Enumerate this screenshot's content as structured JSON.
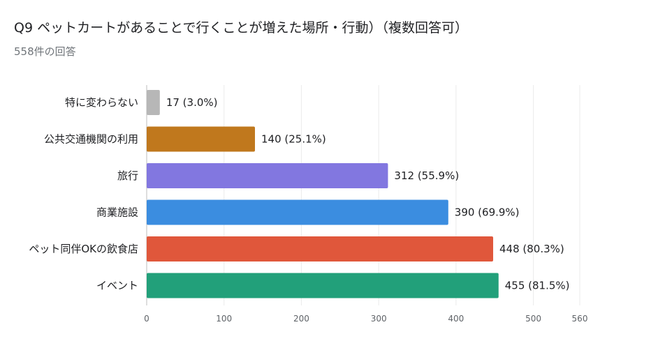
{
  "header": {
    "title": "Q9 ペットカートがあることで行くことが増えた場所・行動）（複数回答可）",
    "responses": "558件の回答"
  },
  "chart_data": {
    "type": "bar",
    "orientation": "horizontal",
    "categories": [
      "特に変わらない",
      "公共交通機関の利用",
      "旅行",
      "商業施設",
      "ペット同伴OKの飲食店",
      "イベント"
    ],
    "values": [
      17,
      140,
      312,
      390,
      448,
      455
    ],
    "data_labels": [
      "17 (3.0%)",
      "140 (25.1%)",
      "312 (55.9%)",
      "390 (69.9%)",
      "448 (80.3%)",
      "455 (81.5%)"
    ],
    "colors": [
      "#b7b7b7",
      "#c0781d",
      "#8277e0",
      "#3b8de0",
      "#e0573b",
      "#22a07a"
    ],
    "xticks": [
      0,
      100,
      200,
      300,
      400,
      500,
      560
    ],
    "xlim": [
      0,
      560
    ],
    "grid": true
  }
}
